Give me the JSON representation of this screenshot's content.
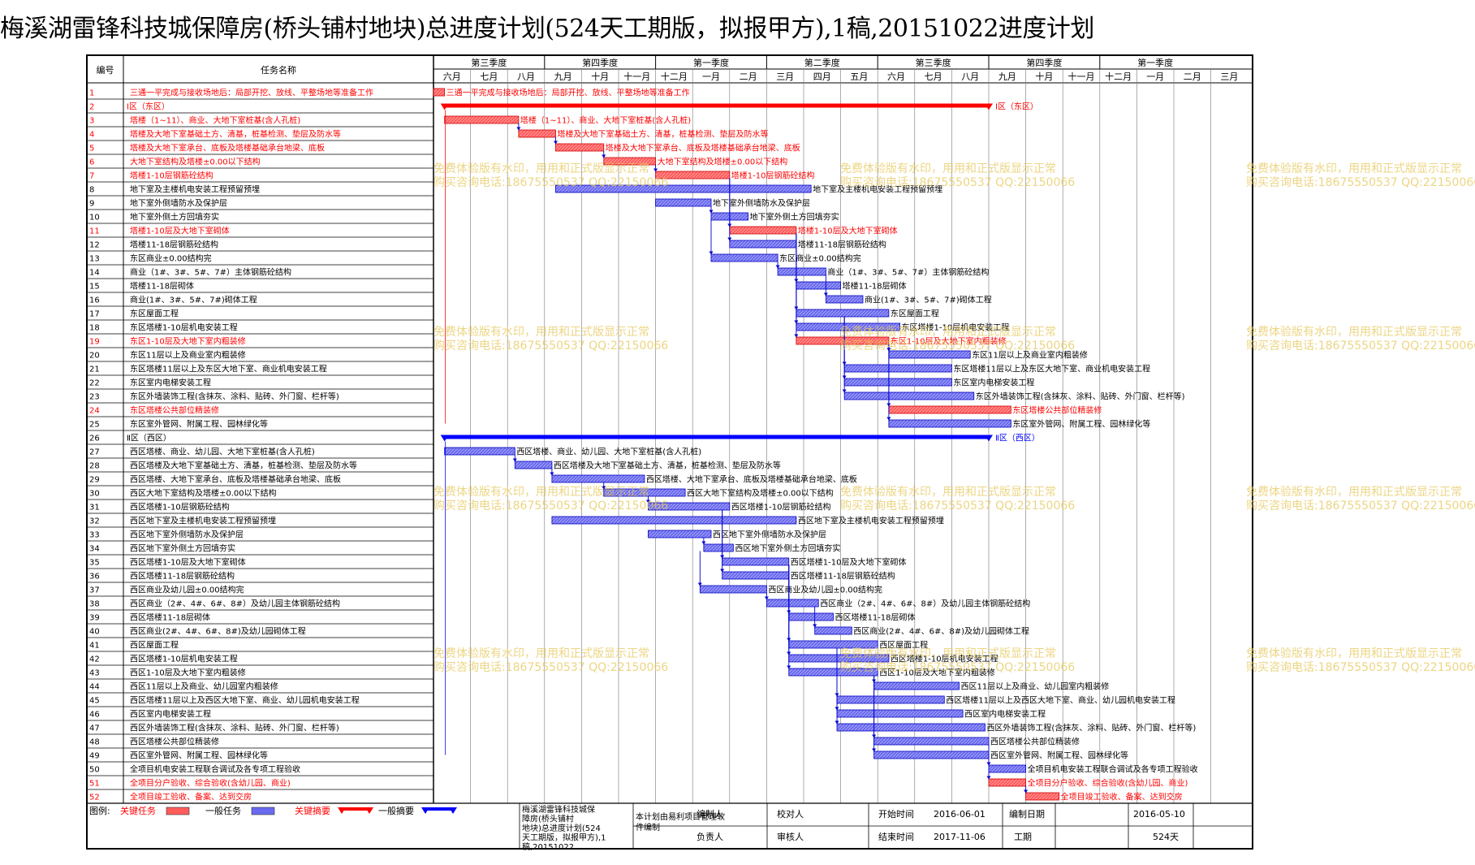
{
  "title": "梅溪湖雷锋科技城保障房(桥头铺村地块)总进度计划(524天工期版，拟报甲方),1稿,20151022进度计划",
  "table_headers": {
    "id": "编号",
    "name": "任务名称"
  },
  "watermark": {
    "line1": "免费体验版有水印，用用和正式版显示正常",
    "line2": "购买咨询电话:18675550537 QQ:22150066"
  },
  "colors": {
    "critical": "#ff5c5c",
    "critical_text": "#ff0000",
    "normal": "#6a6af0",
    "normal_summary": "#0000ff",
    "critical_summary": "#ff0000",
    "grid": "#000000"
  },
  "chart_data": {
    "type": "gantt",
    "timescale": {
      "quarters": [
        "第三季度",
        "第四季度",
        "第一季度",
        "第二季度",
        "第三季度",
        "第四季度",
        "第一季度"
      ],
      "months": [
        "六月",
        "七月",
        "八月",
        "九月",
        "十月",
        "十一月",
        "十二月",
        "一月",
        "二月",
        "三月",
        "四月",
        "五月",
        "六月",
        "七月",
        "八月",
        "九月",
        "十月",
        "十一月",
        "十二月",
        "一月",
        "二月",
        "三月"
      ]
    },
    "tasks": [
      {
        "id": 1,
        "name": "三通一平完成与接收场地后：局部开挖、放线、平整场地等准备工作",
        "bar_label": "三通一平完成与接收场地后：局部开挖、放线、平整场地等准备工作",
        "start": 0.0,
        "end": 0.3,
        "critical": true,
        "summary": false
      },
      {
        "id": 2,
        "name": "Ⅰ区（东区）",
        "bar_label": "Ⅰ区（东区）",
        "start": 0.3,
        "end": 15.0,
        "critical": true,
        "summary": true
      },
      {
        "id": 3,
        "name": "塔楼（1~11）、商业、大地下室桩基(含人孔桩)",
        "bar_label": "塔楼（1~11）、商业、大地下室桩基(含人孔桩)",
        "start": 0.3,
        "end": 2.3,
        "critical": true,
        "summary": false
      },
      {
        "id": 4,
        "name": "塔楼及大地下室基础土方、清基，桩基检测、垫层及防水等",
        "bar_label": "塔楼及大地下室基础土方、清基，桩基检测、垫层及防水等",
        "start": 2.3,
        "end": 3.3,
        "critical": true,
        "summary": false
      },
      {
        "id": 5,
        "name": "塔楼及大地下室承台、底板及塔楼基础承台地梁、底板",
        "bar_label": "塔楼及大地下室承台、底板及塔楼基础承台地梁、底板",
        "start": 3.3,
        "end": 4.6,
        "critical": true,
        "summary": false
      },
      {
        "id": 6,
        "name": "大地下室结构及塔楼±0.00以下结构",
        "bar_label": "大地下室结构及塔楼±0.00以下结构",
        "start": 4.6,
        "end": 6.0,
        "critical": true,
        "summary": false
      },
      {
        "id": 7,
        "name": "塔楼1-10层钢筋砼结构",
        "bar_label": "塔楼1-10层钢筋砼结构",
        "start": 6.0,
        "end": 8.0,
        "critical": true,
        "summary": false
      },
      {
        "id": 8,
        "name": "地下室及主楼机电安装工程预留预埋",
        "bar_label": "地下室及主楼机电安装工程预留预埋",
        "start": 3.3,
        "end": 10.2,
        "critical": false,
        "summary": false
      },
      {
        "id": 9,
        "name": "地下室外侧墙防水及保护层",
        "bar_label": "地下室外侧墙防水及保护层",
        "start": 6.0,
        "end": 7.5,
        "critical": false,
        "summary": false
      },
      {
        "id": 10,
        "name": "地下室外侧土方回填夯实",
        "bar_label": "地下室外侧土方回填夯实",
        "start": 7.5,
        "end": 8.5,
        "critical": false,
        "summary": false
      },
      {
        "id": 11,
        "name": "塔楼1-10层及大地下室砌体",
        "bar_label": "塔楼1-10层及大地下室砌体",
        "start": 8.0,
        "end": 9.8,
        "critical": true,
        "summary": false
      },
      {
        "id": 12,
        "name": "塔楼11-18层钢筋砼结构",
        "bar_label": "塔楼11-18层钢筋砼结构",
        "start": 8.0,
        "end": 9.8,
        "critical": false,
        "summary": false
      },
      {
        "id": 13,
        "name": "东区商业±0.00结构完",
        "bar_label": "东区商业±0.00结构完",
        "start": 7.5,
        "end": 9.3,
        "critical": false,
        "summary": false
      },
      {
        "id": 14,
        "name": "商业（1#、3#、5#、7#）主体钢筋砼结构",
        "bar_label": "商业（1#、3#、5#、7#）主体钢筋砼结构",
        "start": 9.3,
        "end": 10.6,
        "critical": false,
        "summary": false
      },
      {
        "id": 15,
        "name": "塔楼11-18层砌体",
        "bar_label": "塔楼11-18层砌体",
        "start": 9.8,
        "end": 11.0,
        "critical": false,
        "summary": false
      },
      {
        "id": 16,
        "name": "商业(1#、3#、5#、7#)砌体工程",
        "bar_label": "商业(1#、3#、5#、7#)砌体工程",
        "start": 10.6,
        "end": 11.6,
        "critical": false,
        "summary": false
      },
      {
        "id": 17,
        "name": "东区屋面工程",
        "bar_label": "东区屋面工程",
        "start": 9.8,
        "end": 12.3,
        "critical": false,
        "summary": false
      },
      {
        "id": 18,
        "name": "东区塔楼1-10层机电安装工程",
        "bar_label": "东区塔楼1-10层机电安装工程",
        "start": 9.8,
        "end": 12.6,
        "critical": false,
        "summary": false
      },
      {
        "id": 19,
        "name": "东区1-10层及大地下室内粗装修",
        "bar_label": "东区1-10层及大地下室内粗装修",
        "start": 9.8,
        "end": 12.3,
        "critical": true,
        "summary": false
      },
      {
        "id": 20,
        "name": "东区11层以上及商业室内粗装修",
        "bar_label": "东区11层以上及商业室内粗装修",
        "start": 12.3,
        "end": 14.5,
        "critical": false,
        "summary": false
      },
      {
        "id": 21,
        "name": "东区塔楼11层以上及东区大地下室、商业机电安装工程",
        "bar_label": "东区塔楼11层以上及东区大地下室、商业机电安装工程",
        "start": 11.1,
        "end": 14.0,
        "critical": false,
        "summary": false
      },
      {
        "id": 22,
        "name": "东区室内电梯安装工程",
        "bar_label": "东区室内电梯安装工程",
        "start": 11.1,
        "end": 14.0,
        "critical": false,
        "summary": false
      },
      {
        "id": 23,
        "name": "东区外墙装饰工程(含抹灰、涂料、贴砖、外门窗、栏杆等)",
        "bar_label": "东区外墙装饰工程(含抹灰、涂料、贴砖、外门窗、栏杆等)",
        "start": 11.1,
        "end": 14.6,
        "critical": false,
        "summary": false
      },
      {
        "id": 24,
        "name": "东区塔楼公共部位精装修",
        "bar_label": "东区塔楼公共部位精装修",
        "start": 12.3,
        "end": 15.6,
        "critical": true,
        "summary": false
      },
      {
        "id": 25,
        "name": "东区室外管网、附属工程、园林绿化等",
        "bar_label": "东区室外管网、附属工程、园林绿化等",
        "start": 12.3,
        "end": 15.6,
        "critical": false,
        "summary": false
      },
      {
        "id": 26,
        "name": "Ⅱ区（西区）",
        "bar_label": "Ⅱ区（西区）",
        "start": 0.3,
        "end": 15.0,
        "critical": false,
        "summary": true
      },
      {
        "id": 27,
        "name": "西区塔楼、商业、幼儿园、大地下室桩基(含人孔桩)",
        "bar_label": "西区塔楼、商业、幼儿园、大地下室桩基(含人孔桩)",
        "start": 0.3,
        "end": 2.2,
        "critical": false,
        "summary": false
      },
      {
        "id": 28,
        "name": "西区塔楼及大地下室基础土方、清基，桩基检测、垫层及防水等",
        "bar_label": "西区塔楼及大地下室基础土方、清基，桩基检测、垫层及防水等",
        "start": 2.2,
        "end": 3.2,
        "critical": false,
        "summary": false
      },
      {
        "id": 29,
        "name": "西区塔楼、大地下室承台、底板及塔楼基础承台地梁、底板",
        "bar_label": "西区塔楼、大地下室承台、底板及塔楼基础承台地梁、底板",
        "start": 3.2,
        "end": 5.7,
        "critical": false,
        "summary": false
      },
      {
        "id": 30,
        "name": "西区大地下室结构及塔楼±0.00以下结构",
        "bar_label": "西区大地下室结构及塔楼±0.00以下结构",
        "start": 4.6,
        "end": 6.8,
        "critical": false,
        "summary": false
      },
      {
        "id": 31,
        "name": "西区塔楼1-10层钢筋砼结构",
        "bar_label": "西区塔楼1-10层钢筋砼结构",
        "start": 5.8,
        "end": 8.0,
        "critical": false,
        "summary": false
      },
      {
        "id": 32,
        "name": "西区地下室及主楼机电安装工程预留预埋",
        "bar_label": "西区地下室及主楼机电安装工程预留预埋",
        "start": 3.2,
        "end": 9.8,
        "critical": false,
        "summary": false
      },
      {
        "id": 33,
        "name": "西区地下室外侧墙防水及保护层",
        "bar_label": "西区地下室外侧墙防水及保护层",
        "start": 5.8,
        "end": 7.5,
        "critical": false,
        "summary": false
      },
      {
        "id": 34,
        "name": "西区地下室外侧土方回填夯实",
        "bar_label": "西区地下室外侧土方回填夯实",
        "start": 7.3,
        "end": 8.1,
        "critical": false,
        "summary": false
      },
      {
        "id": 35,
        "name": "西区塔楼1-10层及大地下室砌体",
        "bar_label": "西区塔楼1-10层及大地下室砌体",
        "start": 7.8,
        "end": 9.6,
        "critical": false,
        "summary": false
      },
      {
        "id": 36,
        "name": "西区塔楼11-18层钢筋砼结构",
        "bar_label": "西区塔楼11-18层钢筋砼结构",
        "start": 7.8,
        "end": 9.6,
        "critical": false,
        "summary": false
      },
      {
        "id": 37,
        "name": "西区商业及幼儿园±0.00结构完",
        "bar_label": "西区商业及幼儿园±0.00结构完",
        "start": 7.2,
        "end": 9.0,
        "critical": false,
        "summary": false
      },
      {
        "id": 38,
        "name": "西区商业（2#、4#、6#、8#）及幼儿园主体钢筋砼结构",
        "bar_label": "西区商业（2#、4#、6#、8#）及幼儿园主体钢筋砼结构",
        "start": 9.0,
        "end": 10.4,
        "critical": false,
        "summary": false
      },
      {
        "id": 39,
        "name": "西区塔楼11-18层砌体",
        "bar_label": "西区塔楼11-18层砌体",
        "start": 9.6,
        "end": 10.8,
        "critical": false,
        "summary": false
      },
      {
        "id": 40,
        "name": "西区商业(2#、4#、6#、8#)及幼儿园砌体工程",
        "bar_label": "西区商业(2#、4#、6#、8#)及幼儿园砌体工程",
        "start": 10.3,
        "end": 11.3,
        "critical": false,
        "summary": false
      },
      {
        "id": 41,
        "name": "西区屋面工程",
        "bar_label": "西区屋面工程",
        "start": 9.6,
        "end": 12.0,
        "critical": false,
        "summary": false
      },
      {
        "id": 42,
        "name": "西区塔楼1-10层机电安装工程",
        "bar_label": "西区塔楼1-10层机电安装工程",
        "start": 9.6,
        "end": 12.3,
        "critical": false,
        "summary": false
      },
      {
        "id": 43,
        "name": "西区1-10层及大地下室内粗装修",
        "bar_label": "西区1-10层及大地下室内粗装修",
        "start": 9.6,
        "end": 12.0,
        "critical": false,
        "summary": false
      },
      {
        "id": 44,
        "name": "西区11层以上及商业、幼儿园室内粗装修",
        "bar_label": "西区11层以上及商业、幼儿园室内粗装修",
        "start": 11.9,
        "end": 14.2,
        "critical": false,
        "summary": false
      },
      {
        "id": 45,
        "name": "西区塔楼11层以上及西区大地下室、商业、幼儿园机电安装工程",
        "bar_label": "西区塔楼11层以上及西区大地下室、商业、幼儿园机电安装工程",
        "start": 10.9,
        "end": 13.8,
        "critical": false,
        "summary": false
      },
      {
        "id": 46,
        "name": "西区室内电梯安装工程",
        "bar_label": "西区室内电梯安装工程",
        "start": 10.9,
        "end": 14.3,
        "critical": false,
        "summary": false
      },
      {
        "id": 47,
        "name": "西区外墙装饰工程(含抹灰、涂料、贴砖、外门窗、栏杆等)",
        "bar_label": "西区外墙装饰工程(含抹灰、涂料、贴砖、外门窗、栏杆等)",
        "start": 10.9,
        "end": 14.9,
        "critical": false,
        "summary": false
      },
      {
        "id": 48,
        "name": "西区塔楼公共部位精装修",
        "bar_label": "西区塔楼公共部位精装修",
        "start": 11.9,
        "end": 15.0,
        "critical": false,
        "summary": false
      },
      {
        "id": 49,
        "name": "西区室外管网、附属工程、园林绿化等",
        "bar_label": "西区室外管网、附属工程、园林绿化等",
        "start": 11.9,
        "end": 15.0,
        "critical": false,
        "summary": false
      },
      {
        "id": 50,
        "name": "全项目机电安装工程联合调试及各专项工程验收",
        "bar_label": "全项目机电安装工程联合调试及各专项工程验收",
        "start": 15.0,
        "end": 16.0,
        "critical": false,
        "summary": false
      },
      {
        "id": 51,
        "name": "全项目分户验收、综合验收(含幼儿园、商业)",
        "bar_label": "全项目分户验收、综合验收(含幼儿园、商业)",
        "start": 15.0,
        "end": 16.0,
        "critical": true,
        "summary": false
      },
      {
        "id": 52,
        "name": "全项目竣工验收、备案、达到交房",
        "bar_label": "全项目竣工验收、备案、达到交房",
        "start": 16.0,
        "end": 16.9,
        "critical": true,
        "summary": false
      }
    ]
  },
  "legend": {
    "label": "图例:",
    "critical_task": "关键任务",
    "normal_task": "一般任务",
    "critical_summary": "关键摘要",
    "normal_summary": "一般摘要"
  },
  "footer": {
    "project_name": "梅溪湖雷锋科技城保障房(桥头铺村地块)总进度计划(524天工期版，拟报甲方),1稿,20151022",
    "software_note": "本计划由易利项目管理软件编制",
    "author_label": "编制人",
    "checker_label": "校对人",
    "owner_label": "负责人",
    "reviewer_label": "审核人",
    "start_label": "开始时间",
    "start_value": "2016-06-01",
    "made_label": "编制日期",
    "made_value": "2016-05-10",
    "end_label": "结束时间",
    "end_value": "2017-11-06",
    "duration_label": "工期",
    "duration_value": "524天"
  }
}
